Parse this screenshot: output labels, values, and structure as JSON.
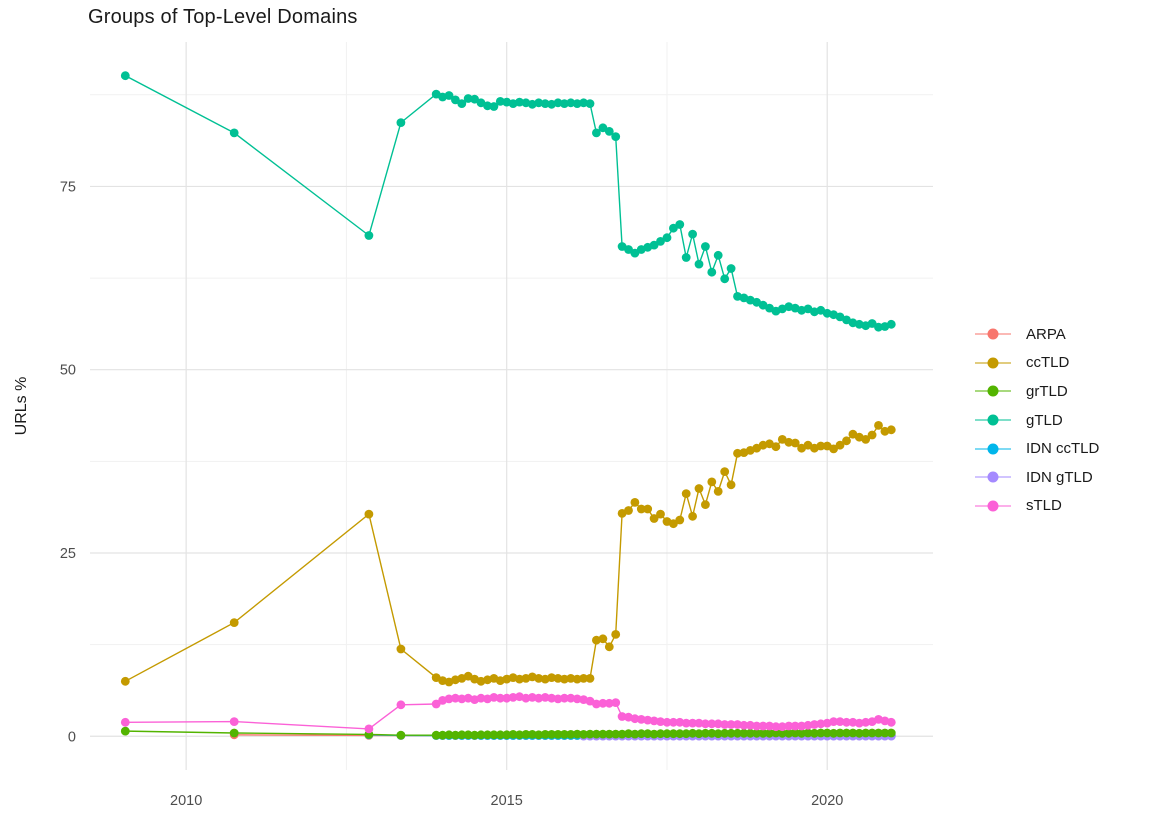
{
  "chart_data": {
    "type": "line",
    "title": "Groups of Top-Level Domains",
    "ylabel": "URLs %",
    "xlabel": "",
    "grid": {
      "on": true,
      "major_color": "#E3E3E3",
      "minor_color": "#F1F1F1",
      "background": "#FFFFFF"
    },
    "x_axis": {
      "major_ticks": [
        2010,
        2015,
        2020
      ],
      "minor_ticks": [
        2012.5,
        2017.5
      ],
      "range": [
        2008.5,
        2021.65
      ]
    },
    "y_axis": {
      "major_ticks": [
        0,
        25,
        50,
        75
      ],
      "minor_ticks": [
        12.5,
        37.5,
        62.5,
        87.5
      ],
      "range": [
        -4.6,
        94.7
      ]
    },
    "legend_position": "right",
    "series": [
      {
        "name": "ARPA",
        "color": "#F8766D",
        "early": [
          [
            2010.75,
            0.2
          ],
          [
            2012.85,
            0.12
          ],
          [
            2013.35,
            0.1
          ]
        ],
        "dense_start": 2013.9,
        "dense_step": 0.1,
        "dense": [
          0.1,
          0.1,
          0.1,
          0.1,
          0.1,
          0.1,
          0.1,
          0.1,
          0.1,
          0.1,
          0.1,
          0.1,
          0.1,
          0.1,
          0.1,
          0.1,
          0.1,
          0.1,
          0.1,
          0.1,
          0.1,
          0.1,
          0.1,
          0.1,
          0.1,
          0.1,
          0.1,
          0.1,
          0.1,
          0.1,
          0.1,
          0.1,
          0.1,
          0.1,
          0.1,
          0.1,
          0.1,
          0.1,
          0.1,
          0.1,
          0.1,
          0.1,
          0.1,
          0.1,
          0.1,
          0.1,
          0.1,
          0.1,
          0.1,
          0.1,
          0.1,
          0.1,
          0.1,
          0.1,
          0.1,
          0.1,
          0.1,
          0.1,
          0.1,
          0.1,
          0.1,
          0.1,
          0.1,
          0.1,
          0.1,
          0.1,
          0.1,
          0.1,
          0.1,
          0.1,
          0.1,
          0.1
        ]
      },
      {
        "name": "ccTLD",
        "color": "#C49A00",
        "early": [
          [
            2009.05,
            7.5
          ],
          [
            2010.75,
            15.5
          ],
          [
            2012.85,
            30.3
          ],
          [
            2013.35,
            11.9
          ]
        ],
        "dense_start": 2013.9,
        "dense_step": 0.1,
        "dense": [
          8.0,
          7.6,
          7.4,
          7.7,
          7.9,
          8.2,
          7.8,
          7.5,
          7.7,
          7.9,
          7.6,
          7.8,
          8.0,
          7.8,
          7.9,
          8.1,
          7.9,
          7.8,
          8.0,
          7.9,
          7.8,
          7.9,
          7.8,
          7.9,
          7.9,
          13.1,
          13.3,
          12.2,
          13.9,
          30.4,
          30.8,
          31.9,
          31.0,
          31.0,
          29.7,
          30.3,
          29.3,
          29.0,
          29.5,
          33.1,
          30.0,
          33.8,
          31.6,
          34.7,
          33.4,
          36.1,
          34.3,
          38.6,
          38.7,
          39.0,
          39.3,
          39.7,
          39.9,
          39.5,
          40.5,
          40.1,
          40.0,
          39.3,
          39.7,
          39.3,
          39.6,
          39.6,
          39.2,
          39.7,
          40.3,
          41.2,
          40.8,
          40.5,
          41.1,
          42.4,
          41.6,
          41.8
        ]
      },
      {
        "name": "grTLD",
        "color": "#53B400",
        "early": [
          [
            2009.05,
            0.7
          ],
          [
            2010.75,
            0.45
          ],
          [
            2012.85,
            0.25
          ],
          [
            2013.35,
            0.15
          ]
        ],
        "dense_start": 2013.9,
        "dense_step": 0.1,
        "dense": [
          0.15,
          0.15,
          0.2,
          0.15,
          0.2,
          0.2,
          0.15,
          0.2,
          0.2,
          0.2,
          0.2,
          0.2,
          0.25,
          0.2,
          0.25,
          0.25,
          0.2,
          0.25,
          0.25,
          0.25,
          0.25,
          0.25,
          0.3,
          0.25,
          0.3,
          0.3,
          0.3,
          0.3,
          0.3,
          0.3,
          0.35,
          0.3,
          0.35,
          0.35,
          0.3,
          0.35,
          0.35,
          0.35,
          0.35,
          0.35,
          0.4,
          0.35,
          0.4,
          0.4,
          0.35,
          0.4,
          0.4,
          0.4,
          0.4,
          0.4,
          0.4,
          0.4,
          0.4,
          0.45,
          0.4,
          0.4,
          0.45,
          0.4,
          0.45,
          0.4,
          0.45,
          0.45,
          0.4,
          0.45,
          0.45,
          0.45,
          0.4,
          0.45,
          0.45,
          0.45,
          0.45,
          0.45
        ]
      },
      {
        "name": "gTLD",
        "color": "#00C094",
        "early": [
          [
            2009.05,
            90.1
          ],
          [
            2010.75,
            82.3
          ],
          [
            2012.85,
            68.3
          ],
          [
            2013.35,
            83.7
          ]
        ],
        "dense_start": 2013.9,
        "dense_step": 0.1,
        "dense": [
          87.6,
          87.2,
          87.4,
          86.8,
          86.3,
          87.0,
          86.9,
          86.4,
          86.0,
          85.9,
          86.6,
          86.5,
          86.3,
          86.5,
          86.4,
          86.2,
          86.4,
          86.3,
          86.2,
          86.4,
          86.3,
          86.4,
          86.3,
          86.4,
          86.3,
          82.3,
          83.0,
          82.5,
          81.8,
          66.8,
          66.4,
          65.9,
          66.4,
          66.7,
          67.0,
          67.5,
          68.0,
          69.3,
          69.8,
          65.3,
          68.5,
          64.4,
          66.8,
          63.3,
          65.6,
          62.4,
          63.8,
          60.0,
          59.8,
          59.5,
          59.2,
          58.8,
          58.4,
          58.0,
          58.3,
          58.6,
          58.4,
          58.1,
          58.3,
          57.9,
          58.1,
          57.7,
          57.5,
          57.2,
          56.8,
          56.4,
          56.2,
          56.0,
          56.3,
          55.8,
          55.9,
          56.2
        ]
      },
      {
        "name": "IDN ccTLD",
        "color": "#00B6EB",
        "early": [
          [
            2012.85,
            0.2
          ],
          [
            2013.35,
            0.12
          ]
        ],
        "dense_start": 2013.9,
        "dense_step": 0.1,
        "dense": [
          0.1,
          0.1,
          0.1,
          0.1,
          0.1,
          0.1,
          0.1,
          0.1,
          0.1,
          0.1,
          0.1,
          0.1,
          0.1,
          0.1,
          0.1,
          0.1,
          0.1,
          0.1,
          0.1,
          0.1,
          0.1,
          0.1,
          0.1,
          0.1,
          0.1,
          0.1,
          0.1,
          0.1,
          0.1,
          0.1,
          0.1,
          0.1,
          0.1,
          0.1,
          0.1,
          0.1,
          0.1,
          0.1,
          0.1,
          0.1,
          0.1,
          0.1,
          0.1,
          0.1,
          0.1,
          0.1,
          0.1,
          0.1,
          0.1,
          0.1,
          0.1,
          0.1,
          0.1,
          0.1,
          0.1,
          0.1,
          0.1,
          0.1,
          0.1,
          0.1,
          0.1,
          0.1,
          0.1,
          0.1,
          0.1,
          0.1,
          0.1,
          0.1,
          0.1,
          0.1,
          0.1,
          0.1
        ]
      },
      {
        "name": "IDN gTLD",
        "color": "#A58AFF",
        "early": [],
        "dense_start": 2016.2,
        "dense_step": 0.1,
        "dense": [
          0.03,
          0.03,
          0.03,
          0.03,
          0.03,
          0.03,
          0.03,
          0.03,
          0.03,
          0.03,
          0.03,
          0.03,
          0.03,
          0.03,
          0.03,
          0.03,
          0.03,
          0.03,
          0.03,
          0.03,
          0.03,
          0.03,
          0.03,
          0.03,
          0.03,
          0.03,
          0.03,
          0.03,
          0.03,
          0.03,
          0.03,
          0.03,
          0.03,
          0.03,
          0.03,
          0.03,
          0.03,
          0.03,
          0.03,
          0.03,
          0.03,
          0.03,
          0.03,
          0.03,
          0.03,
          0.03,
          0.03,
          0.03,
          0.03
        ]
      },
      {
        "name": "sTLD",
        "color": "#FB61D7",
        "early": [
          [
            2009.05,
            1.9
          ],
          [
            2010.75,
            2.0
          ],
          [
            2012.85,
            1.0
          ],
          [
            2013.35,
            4.3
          ]
        ],
        "dense_start": 2013.9,
        "dense_step": 0.1,
        "dense": [
          4.4,
          4.9,
          5.1,
          5.2,
          5.1,
          5.2,
          5.0,
          5.2,
          5.1,
          5.3,
          5.2,
          5.2,
          5.3,
          5.4,
          5.2,
          5.3,
          5.2,
          5.3,
          5.2,
          5.1,
          5.2,
          5.2,
          5.1,
          5.0,
          4.8,
          4.4,
          4.5,
          4.5,
          4.6,
          2.7,
          2.6,
          2.4,
          2.3,
          2.2,
          2.1,
          2.0,
          1.9,
          1.9,
          1.9,
          1.8,
          1.8,
          1.8,
          1.7,
          1.7,
          1.7,
          1.6,
          1.6,
          1.6,
          1.5,
          1.5,
          1.4,
          1.4,
          1.4,
          1.3,
          1.3,
          1.4,
          1.4,
          1.4,
          1.5,
          1.6,
          1.7,
          1.8,
          2.0,
          2.0,
          1.9,
          1.9,
          1.8,
          1.9,
          2.0,
          2.3,
          2.1,
          1.9
        ]
      }
    ]
  },
  "legend": {
    "items": [
      {
        "label": "ARPA",
        "color": "#F8766D"
      },
      {
        "label": "ccTLD",
        "color": "#C49A00"
      },
      {
        "label": "grTLD",
        "color": "#53B400"
      },
      {
        "label": "gTLD",
        "color": "#00C094"
      },
      {
        "label": "IDN ccTLD",
        "color": "#00B6EB"
      },
      {
        "label": "IDN gTLD",
        "color": "#A58AFF"
      },
      {
        "label": "sTLD",
        "color": "#FB61D7"
      }
    ]
  }
}
